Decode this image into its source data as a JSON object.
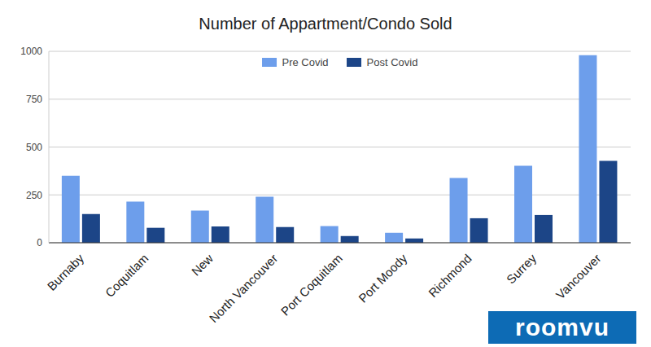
{
  "chart_data": {
    "type": "bar",
    "title": "Number of Appartment/Condo Sold",
    "categories": [
      "Burnaby",
      "Coquitlam",
      "New",
      "North Vancouver",
      "Port Coquitlam",
      "Port Moody",
      "Richmond",
      "Surrey",
      "Vancouver"
    ],
    "series": [
      {
        "name": "Pre Covid",
        "color": "#6d9eeb",
        "values": [
          350,
          215,
          168,
          240,
          87,
          52,
          338,
          402,
          980
        ]
      },
      {
        "name": "Post Covid",
        "color": "#1c4587",
        "values": [
          150,
          78,
          85,
          82,
          35,
          22,
          128,
          145,
          428
        ]
      }
    ],
    "ylim": [
      0,
      1000
    ],
    "yticks": [
      0,
      250,
      500,
      750,
      1000
    ],
    "grid": true,
    "legend": "top",
    "annotations": [
      "roomvu"
    ]
  }
}
